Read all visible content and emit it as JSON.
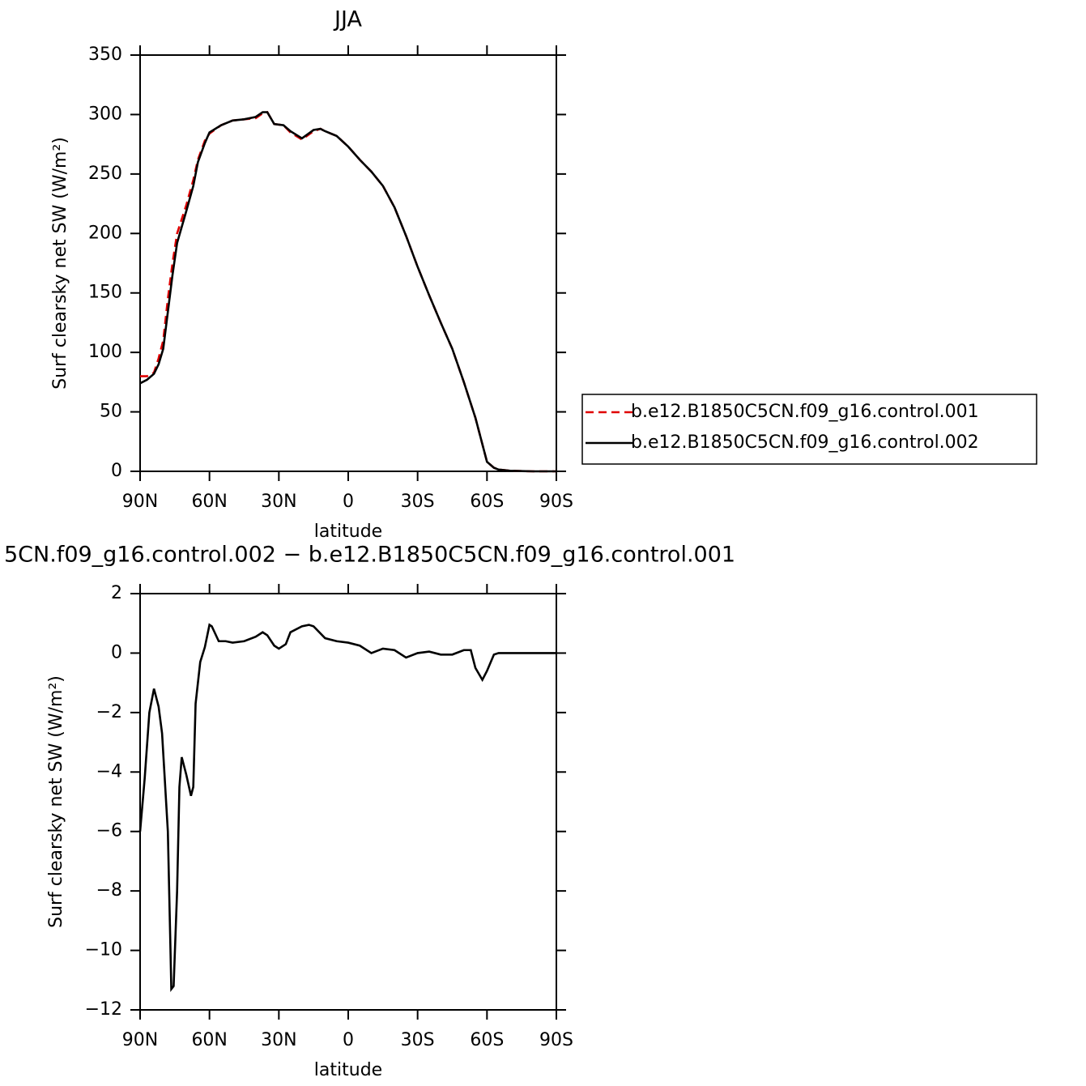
{
  "chart_data": [
    {
      "type": "line",
      "title": "JJA",
      "xlabel": "latitude",
      "ylabel": "Surf clearsky net SW (W/m²)",
      "xlim": [
        90,
        -90
      ],
      "ylim": [
        0,
        350
      ],
      "xticks": [
        {
          "value": 90,
          "label": "90N"
        },
        {
          "value": 60,
          "label": "60N"
        },
        {
          "value": 30,
          "label": "30N"
        },
        0,
        {
          "value": -30,
          "label": "30S"
        },
        {
          "value": -60,
          "label": "60S"
        },
        {
          "value": -90,
          "label": "90S"
        }
      ],
      "yticks": [
        0,
        50,
        100,
        150,
        200,
        250,
        300,
        350
      ],
      "legend": "right",
      "x": [
        90,
        87,
        84,
        82,
        80,
        78,
        76,
        74,
        70,
        67,
        65,
        62,
        60,
        55,
        50,
        45,
        40,
        37,
        35,
        32,
        28,
        25,
        20,
        15,
        12,
        10,
        5,
        0,
        -5,
        -10,
        -15,
        -20,
        -25,
        -30,
        -35,
        -40,
        -45,
        -50,
        -55,
        -60,
        -63,
        -65,
        -70,
        -75,
        -80,
        -85,
        -90
      ],
      "series": [
        {
          "name": "b.e12.B1850C5CN.f09_g16.control.001",
          "color": "#e00000",
          "dashed": true,
          "values": [
            80,
            80,
            83,
            95,
            110,
            145,
            175,
            200,
            224,
            245,
            262,
            278,
            284,
            291,
            295,
            296,
            297,
            301,
            302,
            292,
            291,
            285,
            279,
            286,
            288,
            286,
            282,
            273,
            262,
            252,
            240,
            222,
            198,
            172,
            148,
            125,
            103,
            75,
            45,
            8,
            3,
            1.5,
            0.5,
            0.2,
            0,
            0,
            0
          ]
        },
        {
          "name": "b.e12.B1850C5CN.f09_g16.control.002",
          "color": "#000000",
          "dashed": false,
          "values": [
            74,
            77,
            82,
            90,
            103,
            134,
            165,
            192,
            219,
            240,
            260,
            276,
            285,
            291,
            295,
            296,
            298,
            302,
            302,
            292,
            291,
            286,
            280,
            287,
            288,
            286,
            282,
            273,
            262,
            252,
            240,
            222,
            198,
            172,
            148,
            125,
            103,
            75,
            45,
            8,
            3,
            1.5,
            0.5,
            0.2,
            0,
            0,
            0
          ]
        }
      ]
    },
    {
      "type": "line",
      "title": "5CN.f09_g16.control.002 − b.e12.B1850C5CN.f09_g16.control.001",
      "xlabel": "latitude",
      "ylabel": "Surf clearsky net SW (W/m²)",
      "xlim": [
        90,
        -90
      ],
      "ylim": [
        -12,
        2
      ],
      "xticks": [
        {
          "value": 90,
          "label": "90N"
        },
        {
          "value": 60,
          "label": "60N"
        },
        {
          "value": 30,
          "label": "30N"
        },
        0,
        {
          "value": -30,
          "label": "30S"
        },
        {
          "value": -60,
          "label": "60S"
        },
        {
          "value": -90,
          "label": "90S"
        }
      ],
      "yticks": [
        {
          "value": -12,
          "label": "−12"
        },
        {
          "value": -10,
          "label": "−10"
        },
        {
          "value": -8,
          "label": "−8"
        },
        {
          "value": -6,
          "label": "−6"
        },
        {
          "value": -4,
          "label": "−4"
        },
        {
          "value": -2,
          "label": "−2"
        },
        0,
        2
      ],
      "x": [
        90,
        88,
        86,
        84,
        82,
        80.5,
        78,
        77,
        76.5,
        75.5,
        74,
        73,
        72,
        70,
        68,
        67,
        66,
        64,
        62,
        60,
        59,
        56,
        53,
        50,
        45,
        40,
        37,
        35,
        32,
        30,
        27,
        25,
        20,
        17,
        15,
        10,
        5,
        0,
        -5,
        -10,
        -15,
        -20,
        -25,
        -30,
        -35,
        -40,
        -45,
        -50,
        -53,
        -55,
        -58,
        -60,
        -63,
        -65,
        -70,
        -75,
        -80,
        -85,
        -90
      ],
      "series": [
        {
          "color": "#000000",
          "dashed": false,
          "values": [
            -6,
            -4.2,
            -2,
            -1.2,
            -1.8,
            -2.7,
            -6,
            -9.5,
            -11.3,
            -11.2,
            -8,
            -4.5,
            -3.5,
            -4.1,
            -4.8,
            -4.5,
            -1.7,
            -0.3,
            0.2,
            0.95,
            0.9,
            0.4,
            0.4,
            0.35,
            0.4,
            0.55,
            0.7,
            0.6,
            0.25,
            0.15,
            0.3,
            0.7,
            0.9,
            0.95,
            0.9,
            0.5,
            0.4,
            0.35,
            0.25,
            0,
            0.15,
            0.1,
            -0.15,
            0,
            0.05,
            -0.05,
            -0.05,
            0.1,
            0.1,
            -0.5,
            -0.9,
            -0.6,
            -0.05,
            0,
            0,
            0,
            0,
            0,
            0
          ]
        }
      ]
    }
  ]
}
